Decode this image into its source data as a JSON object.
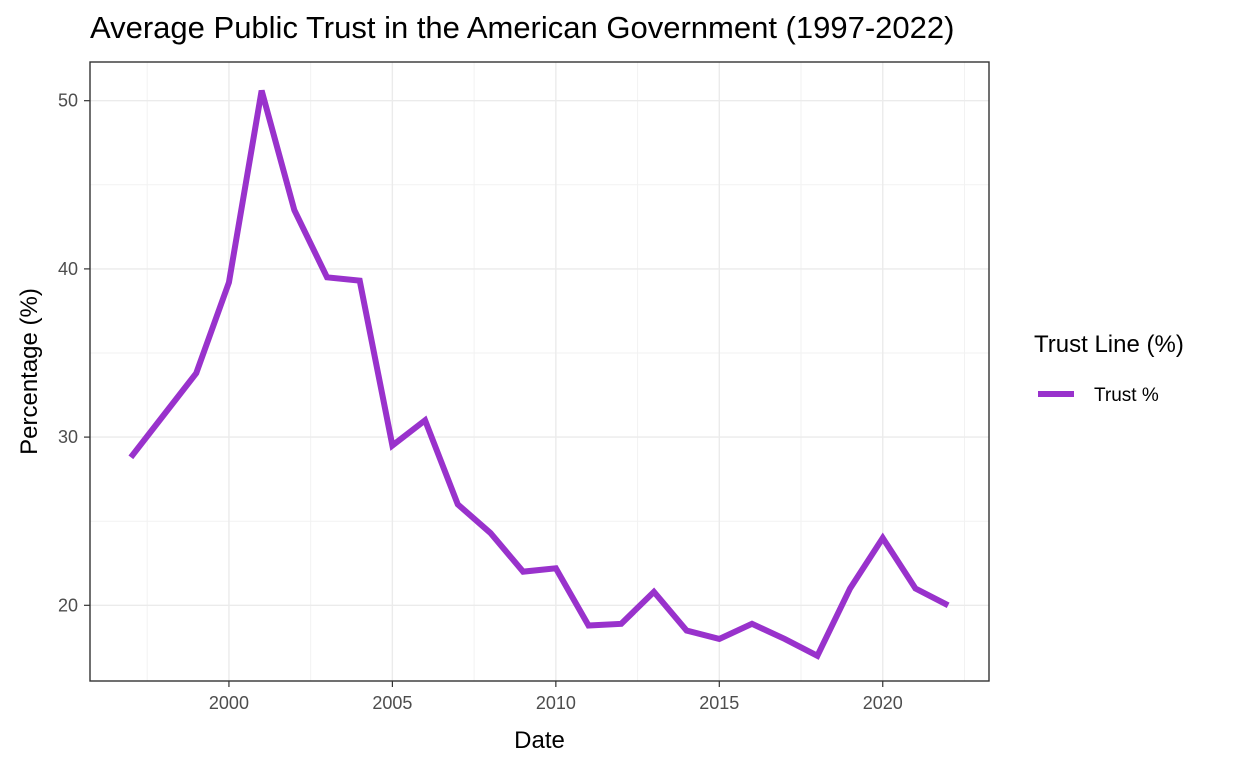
{
  "chart_data": {
    "type": "line",
    "title": "Average Public Trust in the American Government (1997-2022)",
    "xlabel": "Date",
    "ylabel": "Percentage (%)",
    "xlim": [
      1995.75,
      2023.25
    ],
    "ylim": [
      15.5,
      52.3
    ],
    "x_ticks": [
      2000,
      2005,
      2010,
      2015,
      2020
    ],
    "y_ticks": [
      20,
      30,
      40,
      50
    ],
    "grid": true,
    "legend": {
      "title": "Trust Line (%)",
      "position": "right"
    },
    "series": [
      {
        "name": "Trust %",
        "color": "#9932CC",
        "x": [
          1997,
          1998,
          1999,
          2000,
          2001,
          2002,
          2003,
          2004,
          2005,
          2006,
          2007,
          2008,
          2009,
          2010,
          2011,
          2012,
          2013,
          2014,
          2015,
          2016,
          2017,
          2018,
          2019,
          2020,
          2021,
          2022
        ],
        "values": [
          28.8,
          31.3,
          33.8,
          39.2,
          50.6,
          43.5,
          39.5,
          39.3,
          29.5,
          31.0,
          26.0,
          24.3,
          22.0,
          22.2,
          18.8,
          18.9,
          20.8,
          18.5,
          18.0,
          18.9,
          18.0,
          17.0,
          21.0,
          24.0,
          21.0,
          20.0
        ]
      }
    ]
  }
}
